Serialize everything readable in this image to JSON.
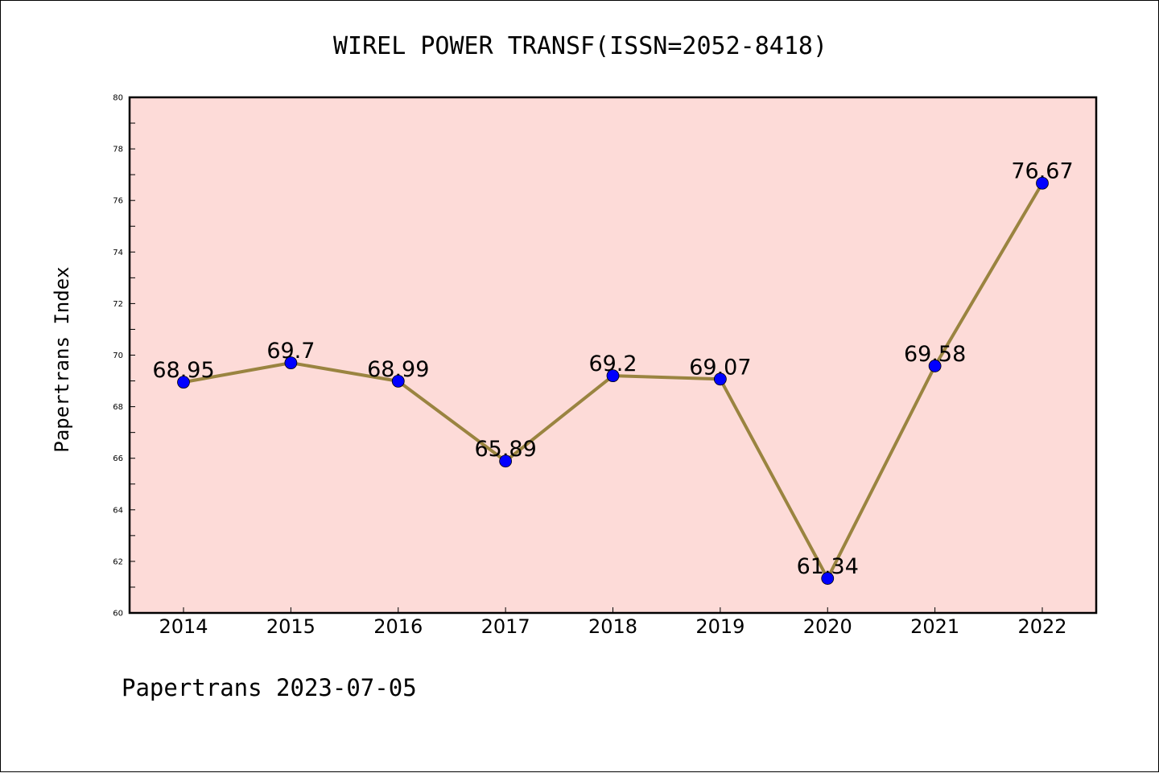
{
  "chart_data": {
    "type": "line",
    "title": "WIREL POWER TRANSF(ISSN=2052-8418)",
    "xlabel": "",
    "ylabel": "Papertrans Index",
    "footer": "Papertrans 2023-07-05",
    "categories": [
      "2014",
      "2015",
      "2016",
      "2017",
      "2018",
      "2019",
      "2020",
      "2021",
      "2022"
    ],
    "values": [
      68.95,
      69.7,
      68.99,
      65.89,
      69.2,
      69.07,
      61.34,
      69.58,
      76.67
    ],
    "data_labels": [
      "68.95",
      "69.7",
      "68.99",
      "65.89",
      "69.2",
      "69.07",
      "61.34",
      "69.58",
      "76.67"
    ],
    "ylim": [
      60,
      80
    ],
    "yticks": [
      "60",
      "62",
      "64",
      "66",
      "68",
      "70",
      "72",
      "74",
      "76",
      "78",
      "80"
    ],
    "grid": false,
    "colors": {
      "plot_background": "#fddbd8",
      "line": "#9a8440",
      "marker": "#0000ff"
    }
  }
}
